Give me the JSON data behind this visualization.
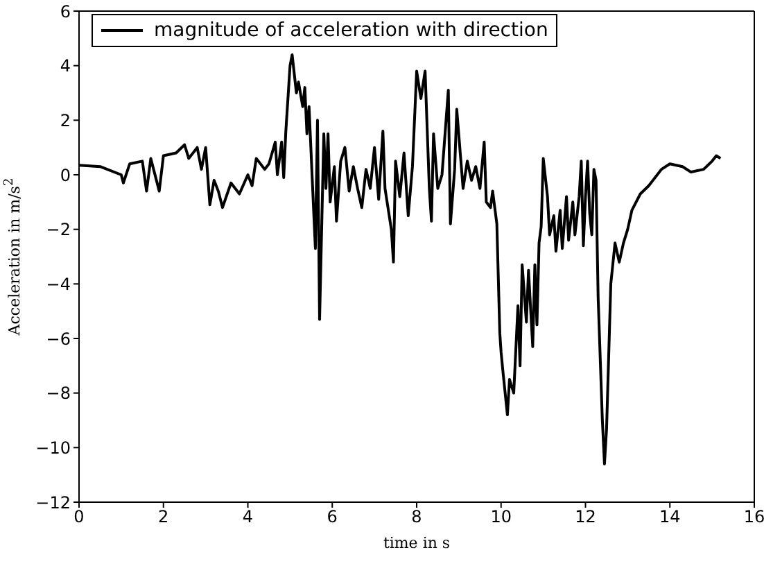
{
  "chart_data": {
    "type": "line",
    "xlabel": "time in s",
    "ylabel": "Acceleration in m/s$^{2}$",
    "xlim": [
      0,
      16
    ],
    "xticks": [
      0,
      2,
      4,
      6,
      8,
      10,
      12,
      14,
      16
    ],
    "ylim": [
      -12,
      6
    ],
    "yticks": [
      -12,
      -10,
      -8,
      -6,
      -4,
      -2,
      0,
      2,
      4,
      6
    ],
    "legend": "top left",
    "marker": "none",
    "line_style": "solid",
    "series": [
      {
        "name": "magnitude of acceleration with direction",
        "color": "#000000",
        "x": [
          0,
          0.5,
          1.0,
          1.05,
          1.2,
          1.5,
          1.6,
          1.7,
          1.9,
          2.0,
          2.3,
          2.5,
          2.6,
          2.8,
          2.9,
          3.0,
          3.1,
          3.2,
          3.3,
          3.4,
          3.6,
          3.8,
          4.0,
          4.1,
          4.2,
          4.4,
          4.5,
          4.65,
          4.7,
          4.8,
          4.85,
          4.9,
          5.0,
          5.05,
          5.15,
          5.2,
          5.3,
          5.35,
          5.4,
          5.45,
          5.55,
          5.6,
          5.65,
          5.7,
          5.8,
          5.85,
          5.9,
          5.95,
          6.05,
          6.1,
          6.2,
          6.3,
          6.4,
          6.5,
          6.6,
          6.7,
          6.8,
          6.9,
          7.0,
          7.1,
          7.2,
          7.25,
          7.3,
          7.4,
          7.45,
          7.5,
          7.6,
          7.7,
          7.8,
          7.9,
          8.0,
          8.1,
          8.2,
          8.3,
          8.35,
          8.4,
          8.5,
          8.6,
          8.75,
          8.8,
          8.9,
          8.95,
          9.1,
          9.2,
          9.3,
          9.4,
          9.5,
          9.6,
          9.65,
          9.75,
          9.8,
          9.85,
          9.9,
          9.97,
          10.0,
          10.05,
          10.15,
          10.2,
          10.3,
          10.4,
          10.45,
          10.5,
          10.6,
          10.65,
          10.75,
          10.8,
          10.85,
          10.9,
          10.95,
          11.0,
          11.1,
          11.15,
          11.25,
          11.3,
          11.4,
          11.45,
          11.55,
          11.6,
          11.7,
          11.75,
          11.85,
          11.9,
          11.95,
          12.0,
          12.05,
          12.1,
          12.15,
          12.2,
          12.25,
          12.3,
          12.4,
          12.45,
          12.5,
          12.6,
          12.7,
          12.8,
          12.9,
          13.0,
          13.1,
          13.3,
          13.5,
          13.6,
          13.8,
          14.0,
          14.3,
          14.5,
          14.8,
          15.0,
          15.1,
          15.2
        ],
        "values": [
          0.35,
          0.3,
          0,
          -0.3,
          0.4,
          0.5,
          -0.6,
          0.6,
          -0.6,
          0.7,
          0.8,
          1.1,
          0.6,
          1.0,
          0.2,
          1.0,
          -1.1,
          -0.2,
          -0.6,
          -1.2,
          -0.3,
          -0.7,
          0,
          -0.4,
          0.6,
          0.2,
          0.4,
          1.2,
          0,
          1.2,
          -0.1,
          1.6,
          4.0,
          4.4,
          3.0,
          3.4,
          2.5,
          3.2,
          1.5,
          2.5,
          -1.0,
          -2.7,
          2.0,
          -5.3,
          1.5,
          -0.5,
          1.5,
          -1.0,
          0.3,
          -1.7,
          0.5,
          1.0,
          -0.6,
          0.3,
          -0.5,
          -1.2,
          0.2,
          -0.5,
          1.0,
          -0.9,
          1.6,
          -0.5,
          -1.0,
          -2.0,
          -3.2,
          0.5,
          -0.8,
          0.8,
          -1.5,
          0.3,
          3.8,
          2.8,
          3.8,
          -0.5,
          -1.7,
          1.5,
          -0.5,
          0,
          3.1,
          -1.8,
          0.2,
          2.4,
          -0.5,
          0.5,
          -0.2,
          0.3,
          -0.5,
          1.2,
          -1.0,
          -1.2,
          -0.6,
          -1.2,
          -1.8,
          -5.8,
          -6.5,
          -7.3,
          -8.8,
          -7.5,
          -8.0,
          -4.8,
          -7.0,
          -3.3,
          -5.4,
          -3.5,
          -6.3,
          -3.3,
          -5.5,
          -2.5,
          -1.9,
          0.6,
          -0.8,
          -2.2,
          -1.5,
          -2.8,
          -1.3,
          -2.7,
          -0.8,
          -2.4,
          -1.0,
          -2.2,
          -0.8,
          0.5,
          -2.6,
          -0.8,
          0.5,
          -1.4,
          -2.2,
          0.2,
          -0.2,
          -4.5,
          -9.0,
          -10.6,
          -9.3,
          -4.0,
          -2.5,
          -3.2,
          -2.5,
          -2.0,
          -1.3,
          -0.7,
          -0.4,
          -0.2,
          0.2,
          0.4,
          0.3,
          0.1,
          0.2,
          0.5,
          0.7,
          0.6
        ]
      }
    ]
  }
}
